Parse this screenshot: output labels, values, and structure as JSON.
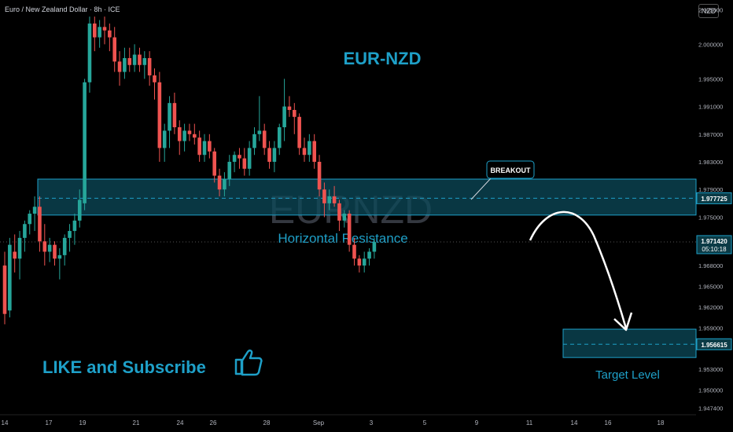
{
  "header": {
    "symbol": "Euro / New Zealand Dollar · 8h · ICE",
    "currency": "NZD"
  },
  "colors": {
    "bull": "#26a69a",
    "bear": "#ef5350",
    "accent": "#1ea0c8",
    "zone_fill": "#0c4a5a",
    "text_light": "#ffffff",
    "axis_text": "#b2b5be",
    "watermark": "#343840"
  },
  "chart_data": {
    "type": "candlestick",
    "title": "EUR-NZD",
    "watermark": "EURNZD",
    "timeframe": "8h",
    "y_axis": {
      "ylim": [
        1.9462,
        2.0064
      ],
      "ticks": [
        "2.005000",
        "2.000000",
        "1.995000",
        "1.991000",
        "1.987000",
        "1.983000",
        "1.979000",
        "1.975000",
        "1.968000",
        "1.965000",
        "1.962000",
        "1.959000",
        "1.953000",
        "1.950000",
        "1.947400"
      ]
    },
    "x_axis": {
      "labels": [
        "14",
        "17",
        "19",
        "21",
        "24",
        "26",
        "28",
        "Sep",
        "3",
        "5",
        "9",
        "11",
        "14",
        "16",
        "18"
      ]
    },
    "candles": [
      [
        1.968,
        1.97,
        1.9595,
        1.961
      ],
      [
        1.9615,
        1.972,
        1.9605,
        1.971
      ],
      [
        1.97,
        1.9725,
        1.967,
        1.969
      ],
      [
        1.969,
        1.973,
        1.966,
        1.972
      ],
      [
        1.972,
        1.9745,
        1.97,
        1.974
      ],
      [
        1.974,
        1.976,
        1.9725,
        1.9755
      ],
      [
        1.9755,
        1.978,
        1.973,
        1.9765
      ],
      [
        1.9765,
        1.978,
        1.97,
        1.9715
      ],
      [
        1.9715,
        1.974,
        1.968,
        1.97
      ],
      [
        1.97,
        1.972,
        1.9685,
        1.971
      ],
      [
        1.971,
        1.9715,
        1.968,
        1.969
      ],
      [
        1.969,
        1.9705,
        1.966,
        1.9695
      ],
      [
        1.9695,
        1.9725,
        1.968,
        1.972
      ],
      [
        1.972,
        1.974,
        1.97,
        1.973
      ],
      [
        1.973,
        1.9755,
        1.971,
        1.9745
      ],
      [
        1.9745,
        1.979,
        1.9735,
        1.9775
      ],
      [
        1.977,
        1.995,
        1.976,
        1.9945
      ],
      [
        1.9945,
        2.004,
        1.993,
        2.003
      ],
      [
        2.003,
        2.004,
        1.999,
        2.001
      ],
      [
        2.001,
        2.0035,
        1.9995,
        2.0025
      ],
      [
        2.0025,
        2.004,
        2.0,
        2.002
      ],
      [
        2.002,
        2.003,
        1.999,
        2.001
      ],
      [
        2.001,
        2.0025,
        1.996,
        1.9975
      ],
      [
        1.9975,
        1.999,
        1.994,
        1.996
      ],
      [
        1.996,
        1.9995,
        1.995,
        1.998
      ],
      [
        1.998,
        1.9995,
        1.996,
        1.997
      ],
      [
        1.997,
        2.0,
        1.996,
        1.9985
      ],
      [
        1.9985,
        1.9995,
        1.996,
        1.997
      ],
      [
        1.997,
        1.999,
        1.995,
        1.998
      ],
      [
        1.998,
        1.999,
        1.994,
        1.9955
      ],
      [
        1.9955,
        1.9965,
        1.992,
        1.9945
      ],
      [
        1.9945,
        1.996,
        1.983,
        1.985
      ],
      [
        1.985,
        1.9885,
        1.983,
        1.9875
      ],
      [
        1.9875,
        1.9925,
        1.985,
        1.9915
      ],
      [
        1.9915,
        1.993,
        1.987,
        1.988
      ],
      [
        1.988,
        1.989,
        1.984,
        1.986
      ],
      [
        1.986,
        1.9885,
        1.9845,
        1.9875
      ],
      [
        1.9875,
        1.9885,
        1.986,
        1.987
      ],
      [
        1.987,
        1.9885,
        1.9855,
        1.9865
      ],
      [
        1.9865,
        1.9875,
        1.983,
        1.984
      ],
      [
        1.984,
        1.987,
        1.983,
        1.986
      ],
      [
        1.986,
        1.987,
        1.9835,
        1.9845
      ],
      [
        1.9845,
        1.985,
        1.98,
        1.981
      ],
      [
        1.981,
        1.982,
        1.978,
        1.979
      ],
      [
        1.979,
        1.9815,
        1.978,
        1.9805
      ],
      [
        1.9805,
        1.984,
        1.9795,
        1.983
      ],
      [
        1.983,
        1.9845,
        1.9815,
        1.984
      ],
      [
        1.984,
        1.985,
        1.982,
        1.9835
      ],
      [
        1.9835,
        1.985,
        1.981,
        1.982
      ],
      [
        1.982,
        1.986,
        1.981,
        1.985
      ],
      [
        1.985,
        1.988,
        1.984,
        1.987
      ],
      [
        1.987,
        1.9925,
        1.986,
        1.9875
      ],
      [
        1.9875,
        1.9885,
        1.984,
        1.985
      ],
      [
        1.985,
        1.986,
        1.982,
        1.983
      ],
      [
        1.983,
        1.986,
        1.9815,
        1.985
      ],
      [
        1.985,
        1.9885,
        1.984,
        1.988
      ],
      [
        1.988,
        1.995,
        1.986,
        1.991
      ],
      [
        1.991,
        1.9925,
        1.9895,
        1.9905
      ],
      [
        1.9905,
        1.9915,
        1.987,
        1.9895
      ],
      [
        1.9895,
        1.99,
        1.984,
        1.985
      ],
      [
        1.985,
        1.9865,
        1.983,
        1.984
      ],
      [
        1.984,
        1.987,
        1.983,
        1.986
      ],
      [
        1.986,
        1.987,
        1.982,
        1.983
      ],
      [
        1.983,
        1.984,
        1.978,
        1.979
      ],
      [
        1.979,
        1.98,
        1.975,
        1.977
      ],
      [
        1.977,
        1.979,
        1.976,
        1.978
      ],
      [
        1.978,
        1.9795,
        1.9765,
        1.977
      ],
      [
        1.977,
        1.9775,
        1.973,
        1.9745
      ],
      [
        1.9745,
        1.976,
        1.9735,
        1.9755
      ],
      [
        1.9755,
        1.976,
        1.97,
        1.971
      ],
      [
        1.971,
        1.972,
        1.968,
        1.969
      ],
      [
        1.969,
        1.9695,
        1.967,
        1.968
      ],
      [
        1.968,
        1.97,
        1.967,
        1.969
      ],
      [
        1.969,
        1.9705,
        1.968,
        1.97
      ],
      [
        1.97,
        1.972,
        1.969,
        1.9714
      ]
    ],
    "zones": [
      {
        "label": "Horizontal Resistance",
        "from": 1.9753,
        "to": 1.9805,
        "dashed_line": 1.97773
      },
      {
        "label": "Target Level",
        "from": 1.9547,
        "to": 1.9588,
        "dashed_line": 1.95662
      }
    ],
    "current_price": {
      "value": "1.971420",
      "countdown": "05:10:18"
    },
    "price_labels": [
      "1.977725",
      "1.956615"
    ],
    "annotations": {
      "breakout": "BREAKOUT",
      "cta": "LIKE and Subscribe"
    }
  }
}
